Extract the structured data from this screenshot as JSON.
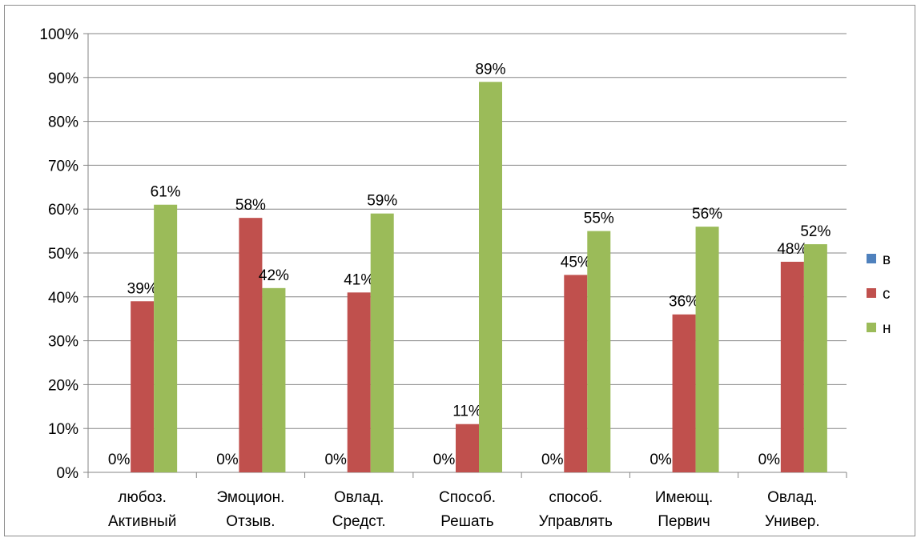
{
  "chart_data": {
    "type": "bar",
    "title": "",
    "xlabel": "",
    "ylabel": "",
    "ylim": [
      0,
      100
    ],
    "y_unit": "%",
    "y_ticks": [
      "0%",
      "10%",
      "20%",
      "30%",
      "40%",
      "50%",
      "60%",
      "70%",
      "80%",
      "90%",
      "100%"
    ],
    "grid": true,
    "legend_position": "right",
    "categories": [
      [
        "любоз.",
        "Активный"
      ],
      [
        "Эмоцион.",
        "Отзыв."
      ],
      [
        "Овлад.",
        "Средст."
      ],
      [
        "Способ.",
        "Решать"
      ],
      [
        "способ.",
        "Управлять"
      ],
      [
        "Имеющ.",
        "Первич"
      ],
      [
        "Овлад.",
        "Универ."
      ]
    ],
    "series": [
      {
        "name": "в",
        "color": "#4f81bd",
        "values": [
          0,
          0,
          0,
          0,
          0,
          0,
          0
        ],
        "labels": [
          "0%",
          "0%",
          "0%",
          "0%",
          "0%",
          "0%",
          "0%"
        ]
      },
      {
        "name": "с",
        "color": "#c0504d",
        "values": [
          39,
          58,
          41,
          11,
          45,
          36,
          48
        ],
        "labels": [
          "39%",
          "58%",
          "41%",
          "11%",
          "45%",
          "36%",
          "48%"
        ]
      },
      {
        "name": "н",
        "color": "#9bbb59",
        "values": [
          61,
          42,
          59,
          89,
          55,
          56,
          52
        ],
        "labels": [
          "61%",
          "42%",
          "59%",
          "89%",
          "55%",
          "56%",
          "52%"
        ]
      }
    ]
  }
}
